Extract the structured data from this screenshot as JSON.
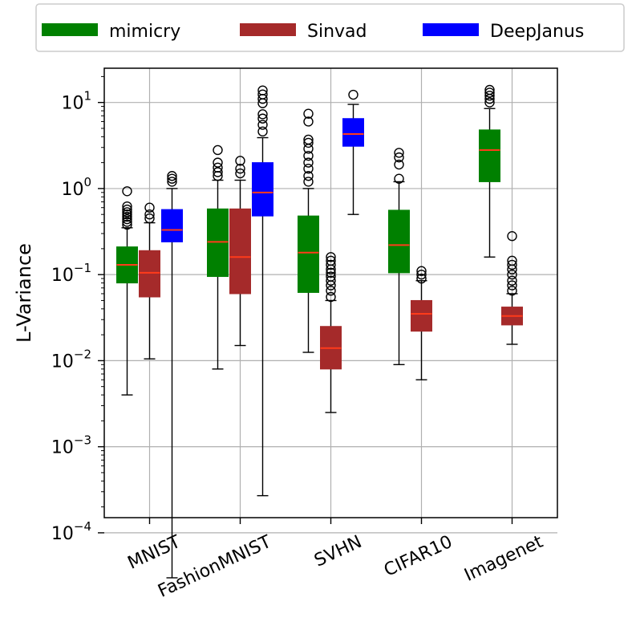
{
  "chart_data": {
    "type": "boxplot",
    "ylabel": "L-Variance",
    "yscale": "log",
    "ylim": [
      0.00015,
      25
    ],
    "yticks": [
      {
        "value": 0.0001,
        "base": "10",
        "exp": "−4"
      },
      {
        "value": 0.001,
        "base": "10",
        "exp": "−3"
      },
      {
        "value": 0.01,
        "base": "10",
        "exp": "−2"
      },
      {
        "value": 0.1,
        "base": "10",
        "exp": "−1"
      },
      {
        "value": 1,
        "base": "10",
        "exp": "0"
      },
      {
        "value": 10,
        "base": "10",
        "exp": "1"
      }
    ],
    "grid": true,
    "legend_position": "top",
    "categories": [
      "MNIST",
      "FashionMNIST",
      "SVHN",
      "CIFAR10",
      "Imagenet"
    ],
    "series": [
      {
        "name": "mimicry",
        "color": "#008000",
        "boxes": [
          {
            "category": "MNIST",
            "whislo": 0.004,
            "q1": 0.08,
            "med": 0.13,
            "q3": 0.21,
            "whishi": 0.35,
            "fliers": [
              0.38,
              0.41,
              0.44,
              0.47,
              0.5,
              0.53,
              0.57,
              0.62,
              0.93
            ]
          },
          {
            "category": "FashionMNIST",
            "whislo": 0.008,
            "q1": 0.095,
            "med": 0.24,
            "q3": 0.58,
            "whishi": 1.25,
            "fliers": [
              1.4,
              1.55,
              1.75,
              2.0,
              2.8
            ]
          },
          {
            "category": "SVHN",
            "whislo": 0.0125,
            "q1": 0.062,
            "med": 0.18,
            "q3": 0.48,
            "whishi": 1.0,
            "fliers": [
              1.2,
              1.4,
              1.7,
              2.0,
              2.4,
              2.9,
              3.4,
              3.7,
              6.0,
              7.4
            ]
          },
          {
            "category": "CIFAR10",
            "whislo": 0.009,
            "q1": 0.105,
            "med": 0.22,
            "q3": 0.56,
            "whishi": 1.2,
            "fliers": [
              1.3,
              1.9,
              2.3,
              2.6
            ]
          },
          {
            "category": "Imagenet",
            "whislo": 0.16,
            "q1": 1.2,
            "med": 2.8,
            "q3": 4.8,
            "whishi": 8.5,
            "fliers": [
              10.0,
              11.0,
              12.0,
              13.0,
              14.0
            ]
          }
        ]
      },
      {
        "name": "Sinvad",
        "color": "#a52a2a",
        "boxes": [
          {
            "category": "MNIST",
            "whislo": 0.0105,
            "q1": 0.055,
            "med": 0.105,
            "q3": 0.19,
            "whishi": 0.4,
            "fliers": [
              0.45,
              0.5,
              0.6
            ]
          },
          {
            "category": "FashionMNIST",
            "whislo": 0.015,
            "q1": 0.06,
            "med": 0.16,
            "q3": 0.58,
            "whishi": 1.25,
            "fliers": [
              1.5,
              1.7,
              2.1
            ]
          },
          {
            "category": "SVHN",
            "whislo": 0.0025,
            "q1": 0.008,
            "med": 0.014,
            "q3": 0.025,
            "whishi": 0.05,
            "fliers": [
              0.055,
              0.065,
              0.075,
              0.085,
              0.095,
              0.105,
              0.115,
              0.13,
              0.145,
              0.16
            ]
          },
          {
            "category": "CIFAR10",
            "whislo": 0.006,
            "q1": 0.022,
            "med": 0.035,
            "q3": 0.05,
            "whishi": 0.085,
            "fliers": [
              0.09,
              0.1,
              0.11
            ]
          },
          {
            "category": "Imagenet",
            "whislo": 0.0155,
            "q1": 0.026,
            "med": 0.033,
            "q3": 0.042,
            "whishi": 0.06,
            "fliers": [
              0.065,
              0.075,
              0.085,
              0.1,
              0.115,
              0.13,
              0.145,
              0.28
            ]
          }
        ]
      },
      {
        "name": "DeepJanus",
        "color": "#0000ff",
        "boxes": [
          {
            "category": "MNIST",
            "whislo": 3e-05,
            "q1": 0.24,
            "med": 0.33,
            "q3": 0.57,
            "whishi": 1.0,
            "fliers": [
              1.2,
              1.3,
              1.4
            ]
          },
          {
            "category": "FashionMNIST",
            "whislo": 0.00027,
            "q1": 0.48,
            "med": 0.9,
            "q3": 2.0,
            "whishi": 3.9,
            "fliers": [
              4.6,
              5.5,
              6.5,
              7.3,
              9.8,
              11.0,
              12.4,
              13.8
            ]
          },
          {
            "category": "SVHN",
            "whislo": 0.5,
            "q1": 3.1,
            "med": 4.3,
            "q3": 6.5,
            "whishi": 9.5,
            "fliers": [
              12.3
            ]
          },
          {
            "category": "CIFAR10",
            "whislo": null,
            "q1": null,
            "med": null,
            "q3": null,
            "whishi": null,
            "fliers": []
          },
          {
            "category": "Imagenet",
            "whislo": null,
            "q1": null,
            "med": null,
            "q3": null,
            "whishi": null,
            "fliers": []
          }
        ]
      }
    ]
  }
}
